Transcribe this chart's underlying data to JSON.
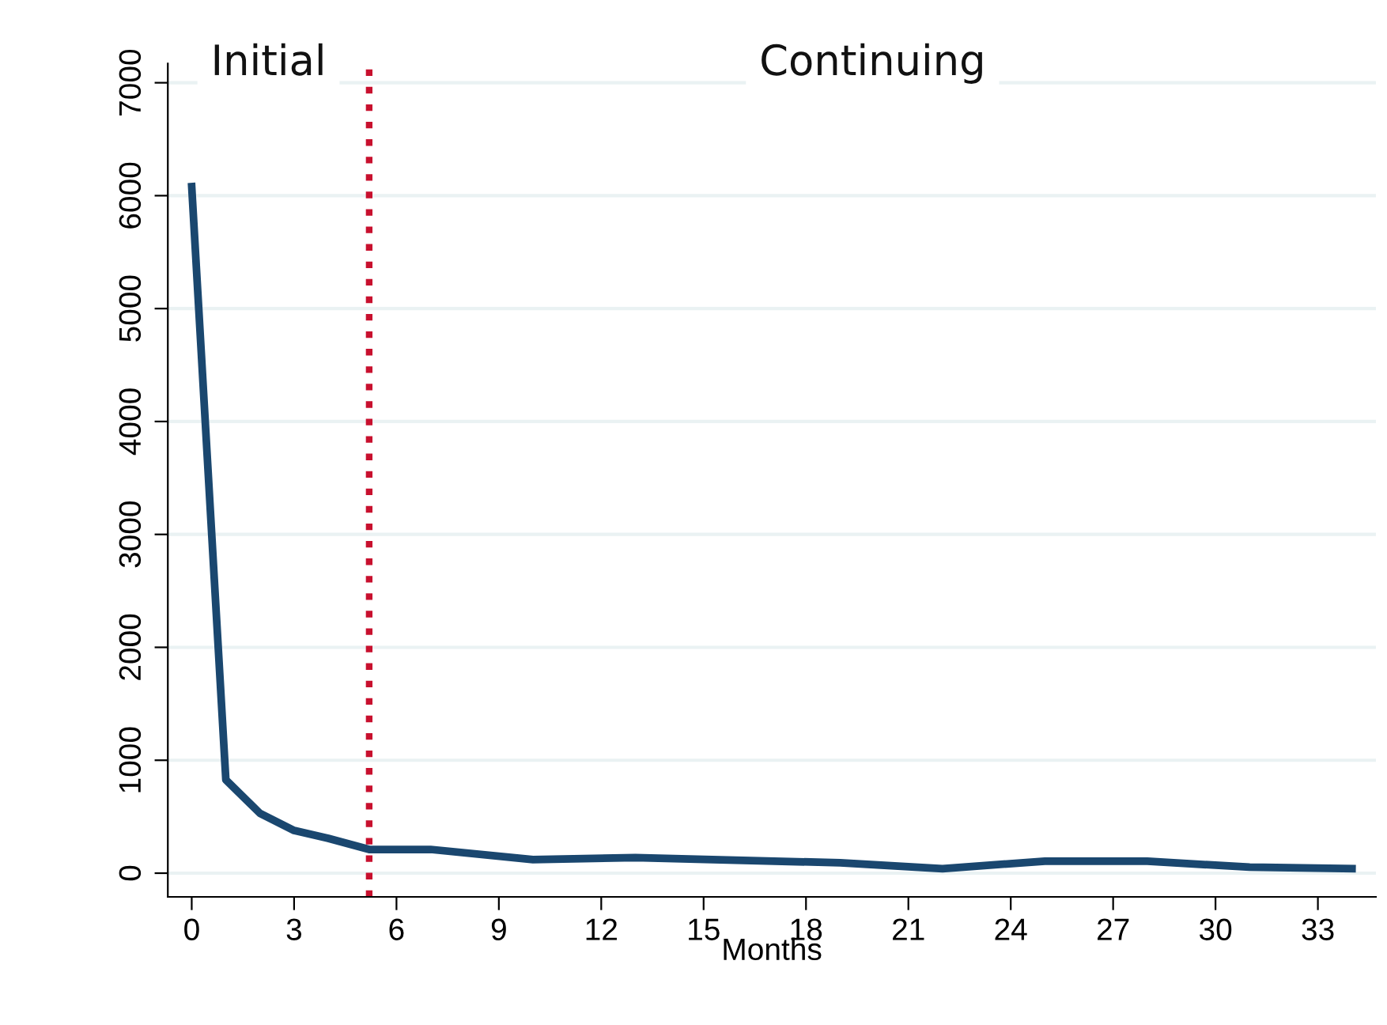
{
  "chart_data": {
    "type": "line",
    "xlabel": "Months",
    "x": [
      0,
      1,
      2,
      3,
      4,
      5.2,
      7,
      10,
      13,
      19,
      22,
      25,
      28,
      31,
      34
    ],
    "series": [
      {
        "color": "#1a476f",
        "values": [
          6080,
          826,
          530,
          378,
          308,
          210,
          210,
          120,
          137,
          92,
          40,
          106,
          106,
          53,
          40
        ]
      }
    ],
    "xlim": [
      -0.7,
      34.7
    ],
    "xticks": [
      0,
      3,
      6,
      9,
      12,
      15,
      18,
      21,
      24,
      27,
      30,
      33
    ],
    "ylim": [
      -210,
      7170
    ],
    "yticks": [
      0,
      1000,
      2000,
      3000,
      4000,
      5000,
      6000,
      7000
    ],
    "grid": "y",
    "marker": "none",
    "line_style": "solid",
    "ref_lines": [
      {
        "axis": "x",
        "value": 5.2,
        "color": "#c8102e",
        "line_style": "dotted"
      }
    ],
    "annotations": [
      "Initial",
      "Continuing"
    ]
  }
}
